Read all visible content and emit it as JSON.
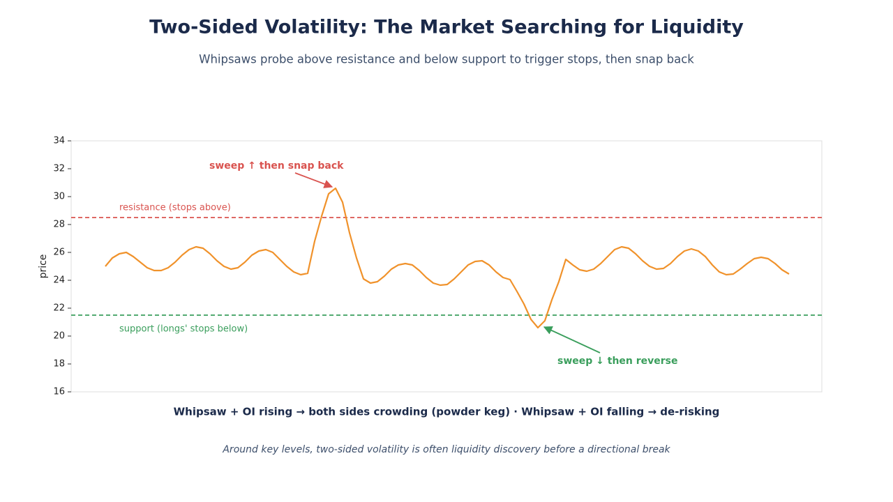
{
  "chart_data": {
    "type": "line",
    "title": "Two-Sided Volatility: The Market Searching for Liquidity",
    "subtitle": "Whipsaws probe above resistance and below support to trigger stops, then snap back",
    "ylabel": "price",
    "ylim": [
      16,
      34
    ],
    "yticks": [
      16,
      18,
      20,
      22,
      24,
      26,
      28,
      30,
      32,
      34
    ],
    "grid": false,
    "series": [
      {
        "name": "price",
        "color": "#f0922b",
        "values": [
          25.0,
          25.6,
          25.9,
          26.0,
          25.7,
          25.3,
          24.9,
          24.7,
          24.7,
          24.9,
          25.3,
          25.8,
          26.2,
          26.4,
          26.3,
          25.9,
          25.4,
          25.0,
          24.8,
          24.9,
          25.3,
          25.8,
          26.1,
          26.2,
          26.0,
          25.5,
          25.0,
          24.6,
          24.4,
          24.5,
          26.8,
          28.6,
          30.2,
          30.6,
          29.6,
          27.4,
          25.6,
          24.1,
          23.8,
          23.9,
          24.3,
          24.8,
          25.1,
          25.2,
          25.1,
          24.7,
          24.2,
          23.8,
          23.65,
          23.7,
          24.1,
          24.6,
          25.1,
          25.35,
          25.4,
          25.1,
          24.6,
          24.2,
          24.05,
          23.2,
          22.3,
          21.2,
          20.6,
          21.1,
          22.6,
          23.9,
          25.5,
          25.1,
          24.75,
          24.65,
          24.8,
          25.2,
          25.7,
          26.2,
          26.4,
          26.3,
          25.9,
          25.4,
          25.0,
          24.8,
          24.85,
          25.2,
          25.7,
          26.1,
          26.25,
          26.1,
          25.7,
          25.1,
          24.6,
          24.4,
          24.45,
          24.8,
          25.2,
          25.55,
          25.65,
          25.55,
          25.2,
          24.75,
          24.45
        ]
      }
    ],
    "hlines": [
      {
        "value": 28.5,
        "label": "resistance (stops above)",
        "color": "#d9534f"
      },
      {
        "value": 21.5,
        "label": "support (longs' stops below)",
        "color": "#3a9e5c"
      }
    ],
    "annotations": [
      {
        "text": "sweep ↑ then snap back",
        "color": "#d9534f"
      },
      {
        "text": "sweep ↓ then reverse",
        "color": "#3a9e5c"
      }
    ],
    "footnote": "Whipsaw + OI rising → both sides crowding (powder keg) · Whipsaw + OI falling → de-risking",
    "caption": "Around key levels, two-sided volatility is often liquidity discovery before a directional break"
  }
}
